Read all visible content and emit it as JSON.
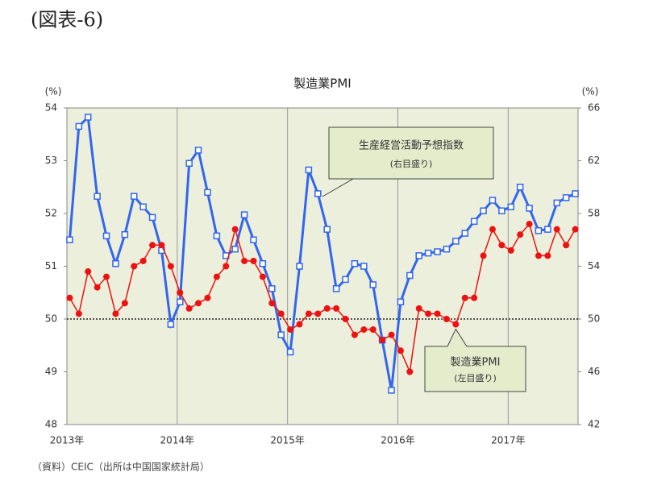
{
  "page_title": "(図表-6)",
  "chart_data": {
    "type": "line",
    "title": "製造業PMI",
    "y_unit": "(%)",
    "y2_unit": "(%)",
    "source": "（資料）CEIC（出所は中国国家統計局）",
    "categories": [
      "2013年",
      null,
      null,
      null,
      null,
      null,
      null,
      null,
      null,
      null,
      null,
      null,
      "2014年",
      null,
      null,
      null,
      null,
      null,
      null,
      null,
      null,
      null,
      null,
      null,
      "2015年",
      null,
      null,
      null,
      null,
      null,
      null,
      null,
      null,
      null,
      null,
      null,
      "2016年",
      null,
      null,
      null,
      null,
      null,
      null,
      null,
      null,
      null,
      null,
      null,
      "2017年",
      null,
      null,
      null,
      null,
      null,
      null,
      null
    ],
    "ylim": [
      48,
      54
    ],
    "yticks": [
      48,
      49,
      50,
      51,
      52,
      53,
      54
    ],
    "y2lim": [
      42,
      66
    ],
    "y2ticks": [
      42,
      46,
      50,
      54,
      58,
      62,
      66
    ],
    "reference_line": {
      "y": 50,
      "style": "dotted"
    },
    "grid": "x",
    "series": [
      {
        "name": "生産経営活動予想指数",
        "axis_note": "(右目盛り)",
        "color": "#3366ee",
        "marker": "square",
        "axis": "y2",
        "values": [
          56,
          64.6,
          65.3,
          59.3,
          56.3,
          54.2,
          56.4,
          59.3,
          58.5,
          57.7,
          55.2,
          49.6,
          51.3,
          61.8,
          62.8,
          59.6,
          56.3,
          54.8,
          55.3,
          57.9,
          56,
          54.2,
          52.3,
          48.8,
          47.5,
          54,
          61.3,
          59.5,
          56.8,
          52.3,
          53,
          54.2,
          54,
          52.6,
          48.4,
          44.6,
          51.3,
          53.3,
          54.8,
          55,
          55.1,
          55.3,
          55.9,
          56.5,
          57.4,
          58.2,
          59,
          58.2,
          58.5,
          60,
          58.4,
          56.7,
          56.8,
          58.8,
          59.2,
          59.5
        ]
      },
      {
        "name": "製造業PMI",
        "axis_note": "(左目盛り)",
        "color": "#ee1111",
        "marker": "circle",
        "values": [
          50.4,
          50.1,
          50.9,
          50.6,
          50.8,
          50.1,
          50.3,
          51.0,
          51.1,
          51.4,
          51.4,
          51.0,
          50.5,
          50.2,
          50.3,
          50.4,
          50.8,
          51.0,
          51.7,
          51.1,
          51.1,
          50.8,
          50.3,
          50.1,
          49.8,
          49.9,
          50.1,
          50.1,
          50.2,
          50.2,
          50.0,
          49.7,
          49.8,
          49.8,
          49.6,
          49.7,
          49.4,
          49.0,
          50.2,
          50.1,
          50.1,
          50.0,
          49.9,
          50.4,
          50.4,
          51.2,
          51.7,
          51.4,
          51.3,
          51.6,
          51.8,
          51.2,
          51.2,
          51.7,
          51.4,
          51.7
        ]
      }
    ]
  }
}
